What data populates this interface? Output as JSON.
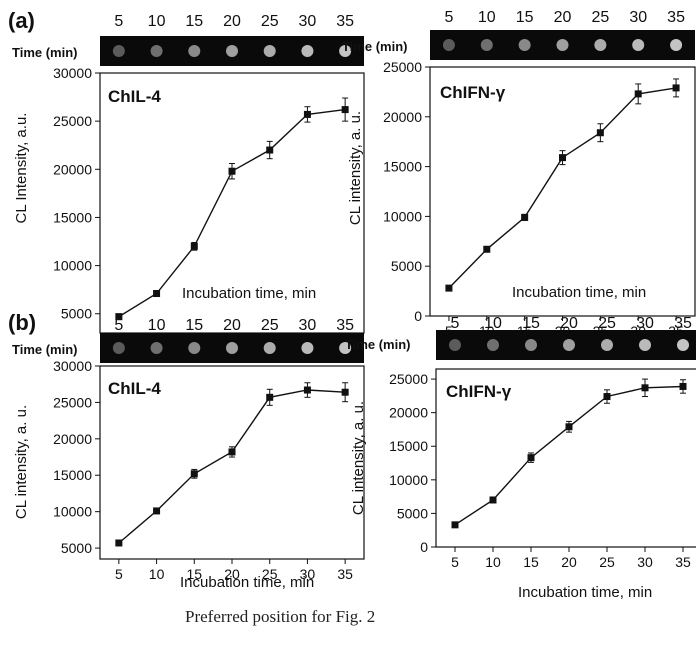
{
  "figure": {
    "panel_labels": [
      "(a)",
      "(b)"
    ],
    "strip_label": "Time (min)",
    "strip_times": [
      "5",
      "10",
      "15",
      "20",
      "25",
      "30",
      "35"
    ],
    "caption": "Preferred position for Fig. 2"
  },
  "chart_data": [
    {
      "type": "line",
      "panel": "(a)",
      "title": "ChIL-4",
      "xlabel": "Incubation time, min",
      "ylabel": "CL Intensity, a.u.",
      "x": [
        5,
        10,
        15,
        20,
        25,
        30,
        35
      ],
      "xticks": [
        "5",
        "10",
        "15",
        "20",
        "25",
        "30",
        "35"
      ],
      "ylim": [
        3000,
        30000
      ],
      "yticks": [
        "5000",
        "10000",
        "15000",
        "20000",
        "25000",
        "30000"
      ],
      "series": [
        {
          "values": [
            4700,
            7100,
            12000,
            19800,
            22000,
            25700,
            26200
          ],
          "errors": [
            200,
            250,
            400,
            800,
            900,
            800,
            1200
          ]
        }
      ],
      "marker": "square",
      "grid": false
    },
    {
      "type": "line",
      "panel": "(a)",
      "title": "ChIFN-γ",
      "xlabel": "Incubation time, min",
      "ylabel": "CL intensity, a. u.",
      "x": [
        5,
        10,
        15,
        20,
        25,
        30,
        35
      ],
      "xticks": [
        "5",
        "10",
        "15",
        "20",
        "25",
        "30",
        "35"
      ],
      "ylim": [
        0,
        25000
      ],
      "yticks": [
        "0",
        "5000",
        "10000",
        "15000",
        "20000",
        "25000"
      ],
      "series": [
        {
          "values": [
            2800,
            6700,
            9900,
            15900,
            18400,
            22300,
            22900
          ],
          "errors": [
            200,
            250,
            300,
            700,
            900,
            1000,
            900
          ]
        }
      ],
      "marker": "square",
      "grid": false
    },
    {
      "type": "line",
      "panel": "(b)",
      "title": "ChIL-4",
      "xlabel": "Incubation time, min",
      "ylabel": "CL intensity, a. u.",
      "x": [
        5,
        10,
        15,
        20,
        25,
        30,
        35
      ],
      "xticks": [
        "5",
        "10",
        "15",
        "20",
        "25",
        "30",
        "35"
      ],
      "ylim": [
        3500,
        30000
      ],
      "yticks": [
        "5000",
        "10000",
        "15000",
        "20000",
        "25000",
        "30000"
      ],
      "series": [
        {
          "values": [
            5700,
            10100,
            15200,
            18200,
            25700,
            26700,
            26400
          ],
          "errors": [
            200,
            250,
            600,
            700,
            1100,
            1000,
            1300
          ]
        }
      ],
      "marker": "square",
      "grid": false
    },
    {
      "type": "line",
      "panel": "(b)",
      "title": "ChIFN-γ",
      "xlabel": "Incubation time, min",
      "ylabel": "CL intensity, a. u.",
      "x": [
        5,
        10,
        15,
        20,
        25,
        30,
        35
      ],
      "xticks": [
        "5",
        "10",
        "15",
        "20",
        "25",
        "30",
        "35"
      ],
      "ylim": [
        0,
        26500
      ],
      "yticks": [
        "0",
        "5000",
        "10000",
        "15000",
        "20000",
        "25000"
      ],
      "series": [
        {
          "values": [
            3300,
            7000,
            13300,
            17900,
            22400,
            23700,
            23900
          ],
          "errors": [
            200,
            250,
            700,
            800,
            1000,
            1300,
            1000
          ]
        }
      ],
      "marker": "square",
      "grid": false
    }
  ]
}
